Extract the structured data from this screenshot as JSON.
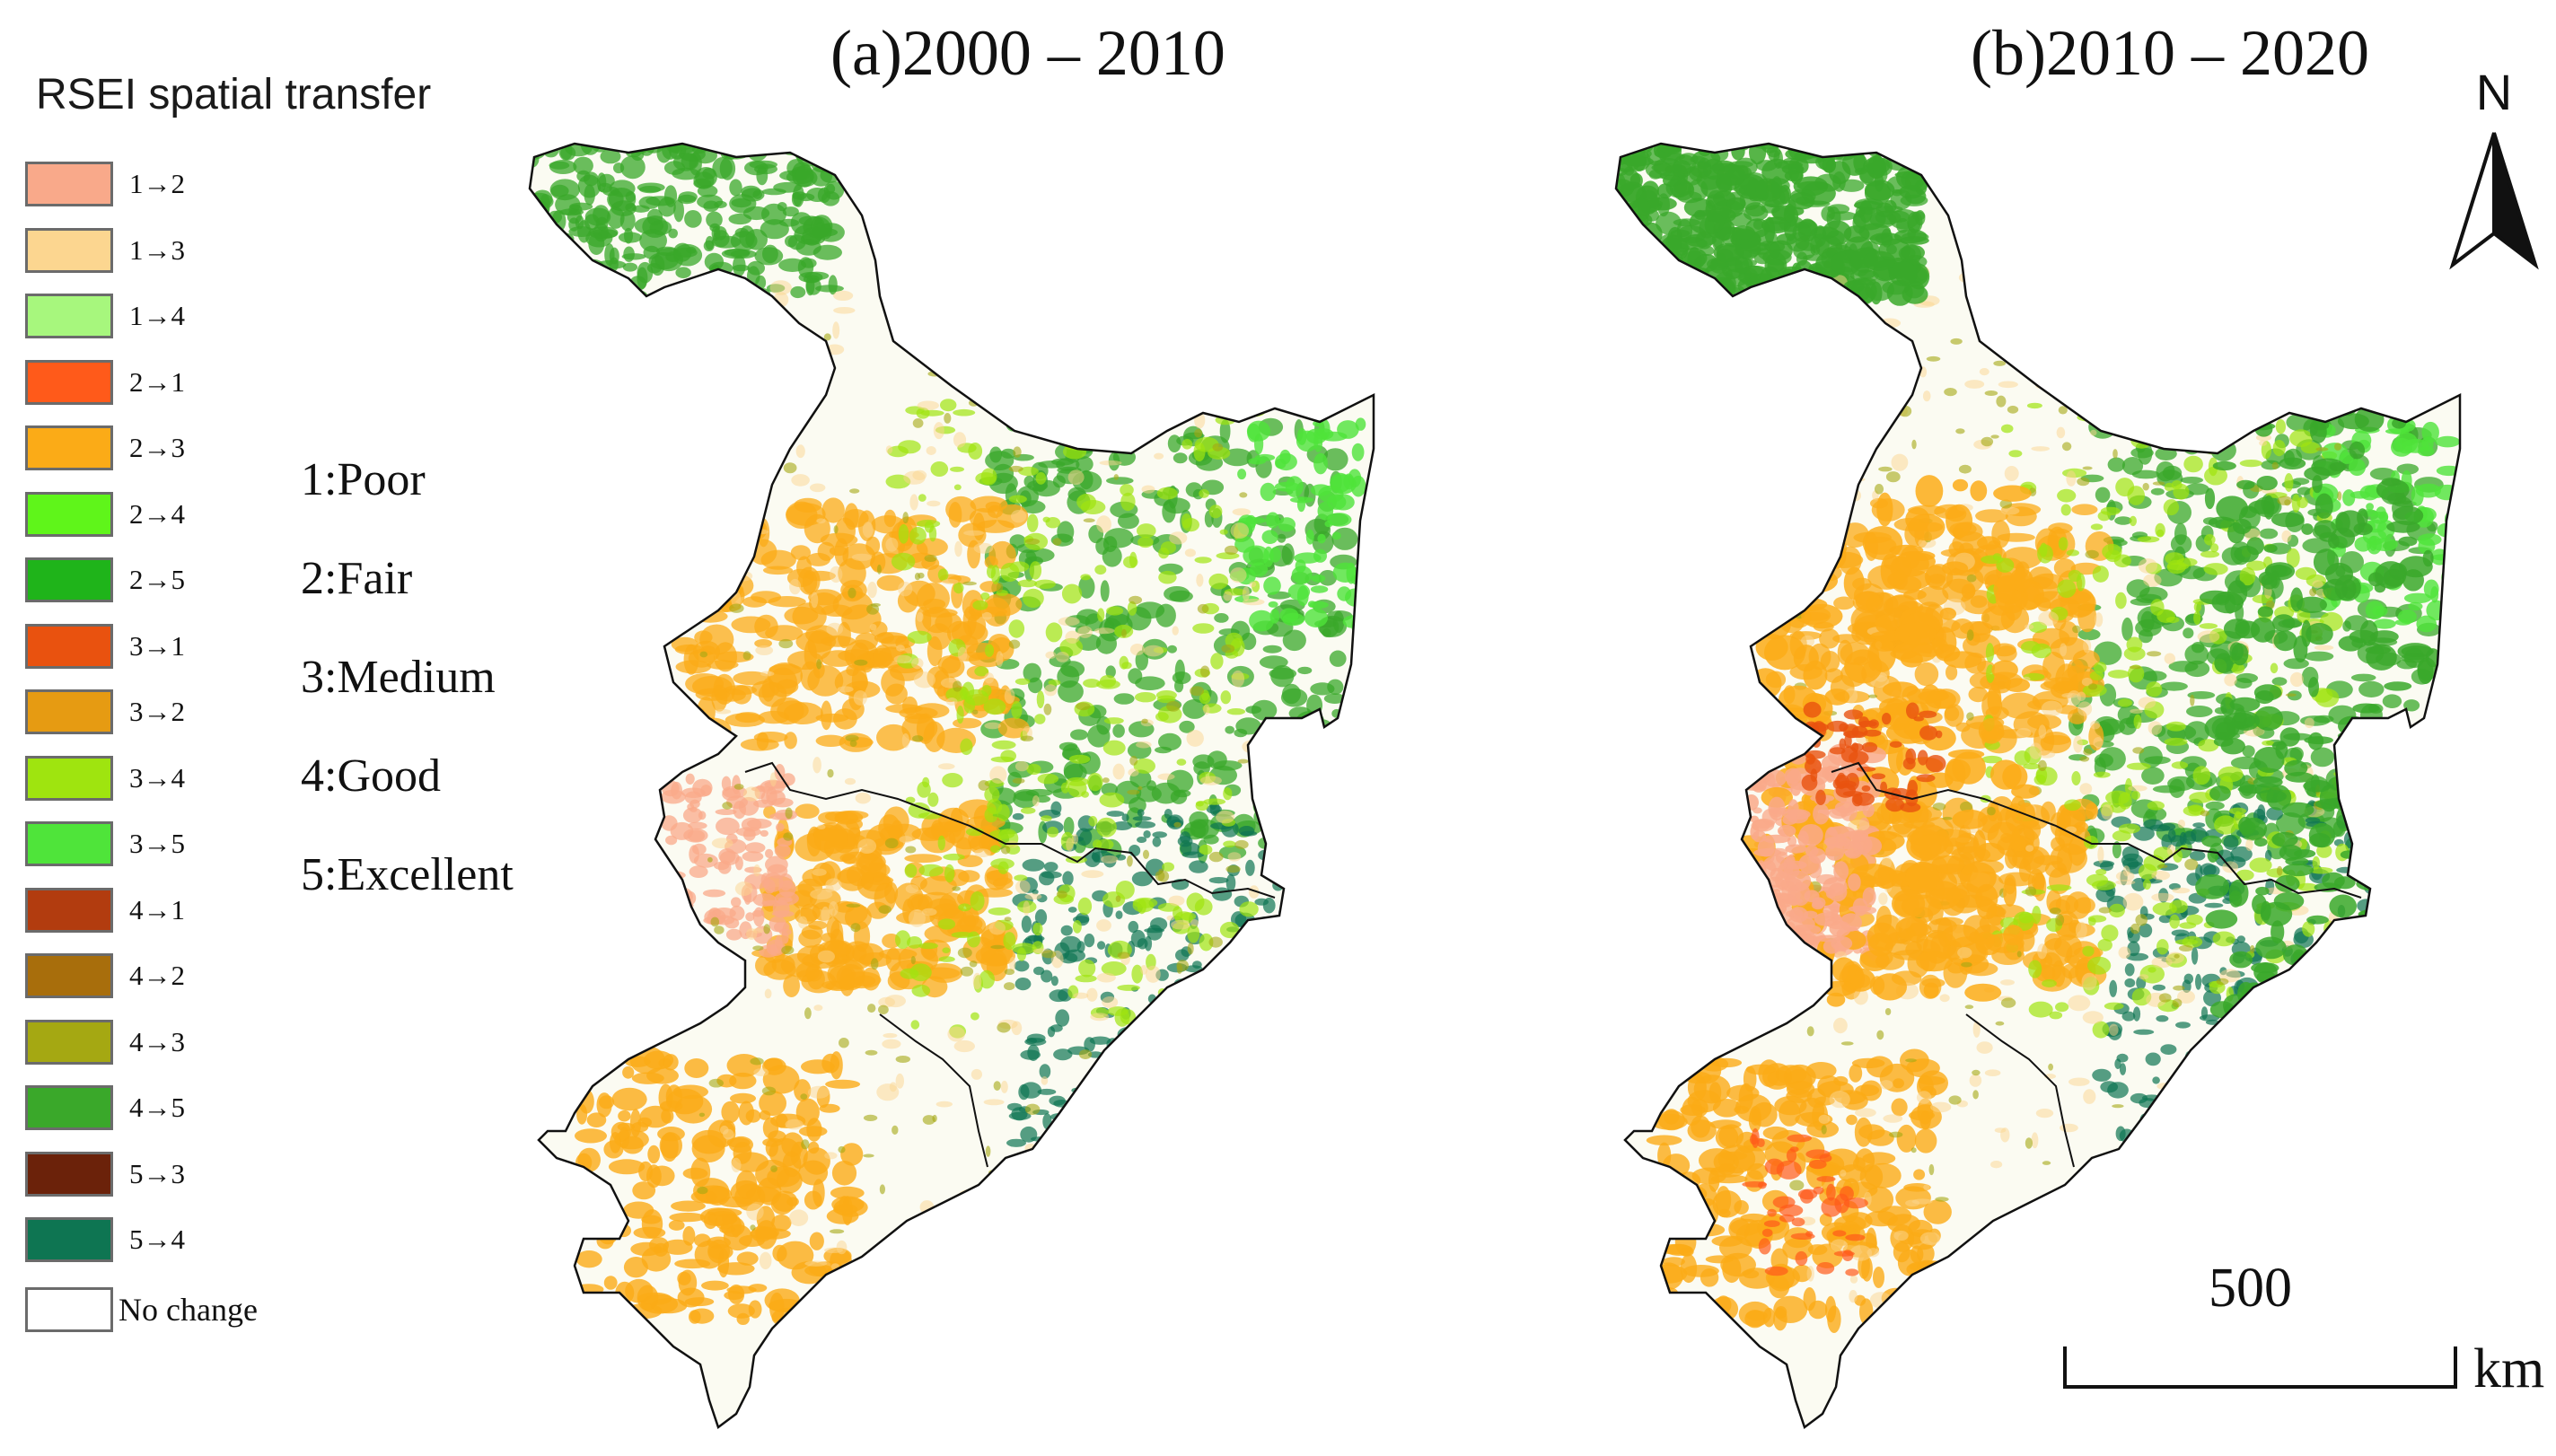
{
  "legend": {
    "title": "RSEI spatial transfer",
    "items": [
      {
        "label": "1→2",
        "color": "#f9a98a"
      },
      {
        "label": "1→3",
        "color": "#fcd690"
      },
      {
        "label": "1→4",
        "color": "#a7f77d"
      },
      {
        "label": "2→1",
        "color": "#ff5a1a"
      },
      {
        "label": "2→3",
        "color": "#fbab17"
      },
      {
        "label": "2→4",
        "color": "#5ff51a"
      },
      {
        "label": "2→5",
        "color": "#1fb41a"
      },
      {
        "label": "3→1",
        "color": "#e9520f"
      },
      {
        "label": "3→2",
        "color": "#e69b12"
      },
      {
        "label": "3→4",
        "color": "#9fe40f"
      },
      {
        "label": "3→5",
        "color": "#4fe43a"
      },
      {
        "label": "4→1",
        "color": "#b23c0f"
      },
      {
        "label": "4→2",
        "color": "#a86e0c"
      },
      {
        "label": "4→3",
        "color": "#a5a812"
      },
      {
        "label": "4→5",
        "color": "#3aa82a"
      },
      {
        "label": "5→3",
        "color": "#6b220a"
      },
      {
        "label": "5→4",
        "color": "#0e7552"
      }
    ],
    "no_change": {
      "label": "No change",
      "color": "#ffffff"
    }
  },
  "classes": [
    "1:Poor",
    "2:Fair",
    "3:Medium",
    "4:Good",
    "5:Excellent"
  ],
  "panels": [
    {
      "title": "(a)2000 – 2010"
    },
    {
      "title": "(b)2010 – 2020"
    }
  ],
  "north_arrow": {
    "letter": "N"
  },
  "scale_bar": {
    "value": "500",
    "unit": "km"
  }
}
